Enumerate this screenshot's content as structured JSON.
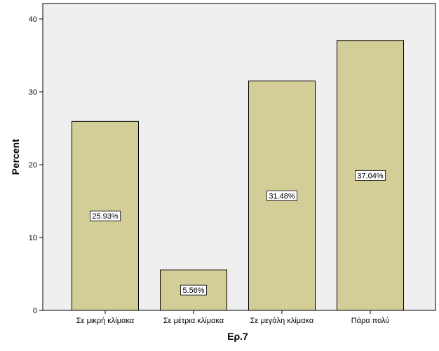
{
  "chart_data": {
    "type": "bar",
    "title": "",
    "xlabel": "Ερ.7",
    "ylabel": "Percent",
    "categories": [
      "Σε μικρή κλίμακα",
      "Σε μέτρια κλίμακα",
      "Σε μεγάλη κλίμακα",
      "Πάρα πολύ"
    ],
    "values": [
      25.93,
      5.56,
      31.48,
      37.04
    ],
    "data_labels": [
      "25.93%",
      "5.56%",
      "31.48%",
      "37.04%"
    ],
    "yticks": [
      0,
      10,
      20,
      30,
      40
    ],
    "ylim": [
      0,
      40
    ],
    "grid": false,
    "legend": "none",
    "colors": {
      "bar_fill": "#d3cd97",
      "bar_stroke": "#000000",
      "plot_background": "#efefef",
      "label_box": "#ffffff"
    }
  }
}
